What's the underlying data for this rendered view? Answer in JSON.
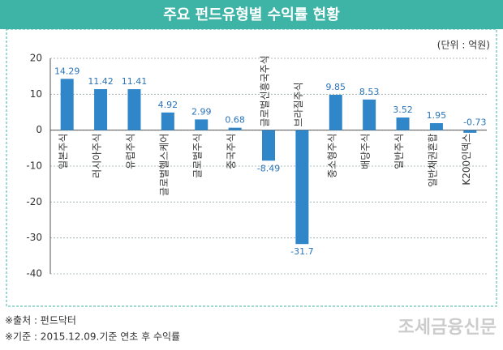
{
  "chart_data": {
    "type": "bar",
    "title": "주요 펀드유형별 수익률 현황",
    "unit_label": "(단위 : 억원)",
    "categories": [
      "일본주식",
      "러시아주식",
      "유럽주식",
      "글로벌헬스케어",
      "글로벌주식",
      "중국주식",
      "글로벌신흥국주식",
      "브라질주식",
      "중소형주식",
      "배당주식",
      "일반주식",
      "일반채권혼합",
      "K200인덱스"
    ],
    "values": [
      14.29,
      11.42,
      11.41,
      4.92,
      2.99,
      0.68,
      -8.49,
      -31.7,
      9.85,
      8.53,
      3.52,
      1.95,
      -0.73
    ],
    "color": "#2f86c9",
    "ylim": [
      -40,
      20
    ],
    "yticks": [
      20,
      10,
      0,
      -10,
      -20,
      -30,
      -40
    ],
    "grid": true,
    "footnotes": [
      "※출처 : 펀드닥터",
      "※기준 : 2015.12.09.기준 연초 후 수익률"
    ],
    "logo": "조세금융신문"
  }
}
